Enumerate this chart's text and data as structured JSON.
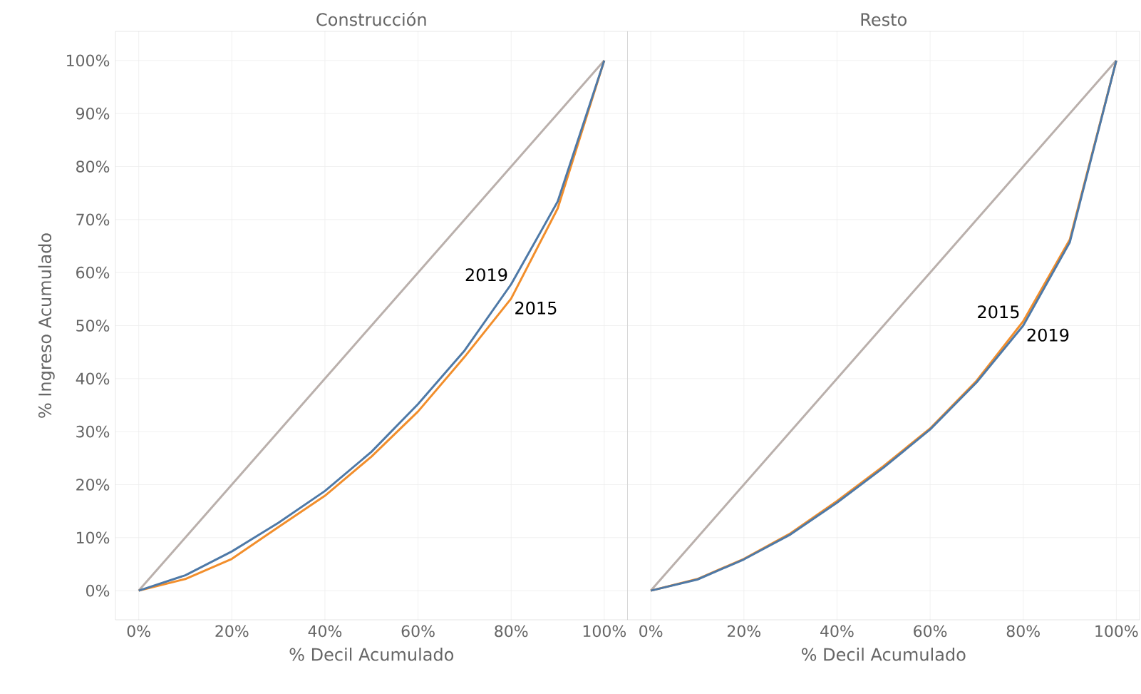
{
  "chart_data": [
    {
      "type": "line",
      "title": "Construcción",
      "xlabel": "% Decil Acumulado",
      "ylabel": "% Ingreso Acumulado",
      "grid": true,
      "x": [
        0,
        10,
        20,
        30,
        40,
        50,
        60,
        70,
        80,
        90,
        100
      ],
      "xlim": [
        -5,
        105
      ],
      "ylim": [
        -5.5,
        105.5
      ],
      "xticks": [
        {
          "value": 0,
          "label": "0%"
        },
        {
          "value": 20,
          "label": "20%"
        },
        {
          "value": 40,
          "label": "40%"
        },
        {
          "value": 60,
          "label": "60%"
        },
        {
          "value": 80,
          "label": "80%"
        },
        {
          "value": 100,
          "label": "100%"
        }
      ],
      "yticks": [
        {
          "value": 0,
          "label": "0%"
        },
        {
          "value": 10,
          "label": "10%"
        },
        {
          "value": 20,
          "label": "20%"
        },
        {
          "value": 30,
          "label": "30%"
        },
        {
          "value": 40,
          "label": "40%"
        },
        {
          "value": 50,
          "label": "50%"
        },
        {
          "value": 60,
          "label": "60%"
        },
        {
          "value": 70,
          "label": "70%"
        },
        {
          "value": 80,
          "label": "80%"
        },
        {
          "value": 90,
          "label": "90%"
        },
        {
          "value": 100,
          "label": "100%"
        }
      ],
      "series": [
        {
          "color": "#bab0ac",
          "values": [
            0,
            10,
            20,
            30,
            40,
            50,
            60,
            70,
            80,
            90,
            100
          ]
        },
        {
          "name": "2015",
          "color": "#f28e2b",
          "values": [
            0,
            2.2,
            6.0,
            12.0,
            17.9,
            25.3,
            33.8,
            44.1,
            55.1,
            72.1,
            100
          ]
        },
        {
          "name": "2019",
          "color": "#4e79a7",
          "values": [
            0,
            2.9,
            7.4,
            12.8,
            18.8,
            26.2,
            35.2,
            45.3,
            57.8,
            73.4,
            100
          ]
        }
      ]
    },
    {
      "type": "line",
      "title": "Resto",
      "xlabel": "% Decil Acumulado",
      "grid": true,
      "tick_labels": "x",
      "x": [
        0,
        10,
        20,
        30,
        40,
        50,
        60,
        70,
        80,
        90,
        100
      ],
      "xlim": [
        -5,
        105
      ],
      "ylim": [
        -5.5,
        105.5
      ],
      "xticks": [
        {
          "value": 0,
          "label": "0%"
        },
        {
          "value": 20,
          "label": "20%"
        },
        {
          "value": 40,
          "label": "40%"
        },
        {
          "value": 60,
          "label": "60%"
        },
        {
          "value": 80,
          "label": "80%"
        },
        {
          "value": 100,
          "label": "100%"
        }
      ],
      "yticks": [
        {
          "value": 0,
          "label": null
        },
        {
          "value": 10,
          "label": null
        },
        {
          "value": 20,
          "label": null
        },
        {
          "value": 30,
          "label": null
        },
        {
          "value": 40,
          "label": null
        },
        {
          "value": 50,
          "label": null
        },
        {
          "value": 60,
          "label": null
        },
        {
          "value": 70,
          "label": null
        },
        {
          "value": 80,
          "label": null
        },
        {
          "value": 90,
          "label": null
        },
        {
          "value": 100,
          "label": null
        }
      ],
      "series": [
        {
          "color": "#bab0ac",
          "values": [
            0,
            10,
            20,
            30,
            40,
            50,
            60,
            70,
            80,
            90,
            100
          ]
        },
        {
          "name": "2015",
          "color": "#f28e2b",
          "values": [
            0,
            2.2,
            6.0,
            10.8,
            16.9,
            23.5,
            30.6,
            39.6,
            50.8,
            66.2,
            100
          ]
        },
        {
          "name": "2019",
          "color": "#4e79a7",
          "values": [
            0,
            2.1,
            5.9,
            10.6,
            16.6,
            23.2,
            30.4,
            39.3,
            50.0,
            65.7,
            100
          ]
        }
      ]
    }
  ]
}
